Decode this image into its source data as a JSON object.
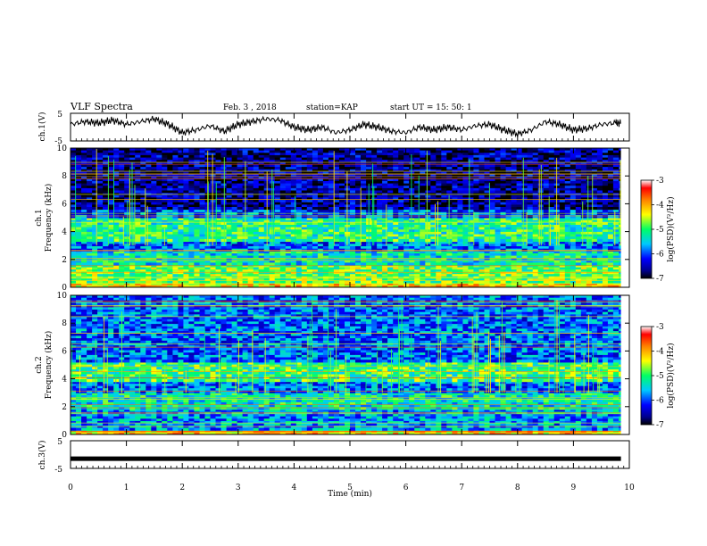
{
  "header": {
    "title": "VLF Spectra",
    "date": "Feb. 3 , 2018",
    "station": "station=KAP",
    "start": "start UT = 15: 50: 1"
  },
  "chart_data": [
    {
      "type": "line",
      "ylabel": "ch.1(V)",
      "ylim": [
        -5,
        5
      ],
      "yticks": [
        "5",
        "-5"
      ],
      "xlim": [
        0,
        10
      ],
      "series": [
        {
          "x": [
            0,
            0.25,
            0.5,
            0.75,
            1,
            1.25,
            1.5,
            1.75,
            2,
            2.25,
            2.5,
            2.75,
            3,
            3.25,
            3.5,
            3.75,
            4,
            4.25,
            4.5,
            4.75,
            5,
            5.25,
            5.5,
            5.75,
            6,
            6.25,
            6.5,
            6.75,
            7,
            7.25,
            7.5,
            7.75,
            8,
            8.25,
            8.5,
            8.75,
            9,
            9.25,
            9.5,
            9.75,
            9.85
          ],
          "values": [
            1,
            2,
            1.5,
            2.5,
            1,
            2,
            3,
            1,
            -2,
            -1,
            0.5,
            -1.5,
            1,
            2,
            3,
            2.5,
            0,
            -1,
            0,
            -2,
            -1,
            1,
            0,
            -1.5,
            -2,
            0,
            -1,
            0,
            -1,
            0.5,
            1,
            -1,
            -2.5,
            -1,
            2,
            1,
            -1,
            -0.5,
            1,
            1.5,
            1.5
          ]
        }
      ],
      "color": "#000000"
    },
    {
      "type": "heatmap",
      "panel": "ch.1",
      "ylabel": "Frequency (kHz)",
      "ylim": [
        0,
        10
      ],
      "yticks": [
        "0",
        "2",
        "4",
        "6",
        "8",
        "10"
      ],
      "xlim": [
        0,
        10
      ],
      "colorbar": {
        "label": "log(PSD)(V²/Hz)",
        "range": [
          -7,
          -3
        ],
        "ticks": [
          "-3",
          "-4",
          "-5",
          "-6",
          "-7"
        ]
      },
      "bands_khz": [
        {
          "from": 0,
          "to": 0.3,
          "level": -4.2
        },
        {
          "from": 0.3,
          "to": 1.6,
          "level": -4.8
        },
        {
          "from": 1.6,
          "to": 2.6,
          "level": -5.3
        },
        {
          "from": 2.6,
          "to": 3.3,
          "level": -5.9
        },
        {
          "from": 3.3,
          "to": 5.0,
          "level": -5.1
        },
        {
          "from": 5.0,
          "to": 5.6,
          "level": -6.0
        },
        {
          "from": 5.6,
          "to": 10,
          "level": -6.6
        }
      ]
    },
    {
      "type": "heatmap",
      "panel": "ch.2",
      "ylabel": "Frequency (kHz)",
      "ylim": [
        0,
        10
      ],
      "yticks": [
        "0",
        "2",
        "4",
        "6",
        "8",
        "10"
      ],
      "xlim": [
        0,
        10
      ],
      "colorbar": {
        "label": "log(PSD)(V²/Hz)",
        "range": [
          -7,
          -3
        ],
        "ticks": [
          "-3",
          "-4",
          "-5",
          "-6",
          "-7"
        ]
      },
      "bands_khz": [
        {
          "from": 0,
          "to": 0.3,
          "level": -4.2
        },
        {
          "from": 0.3,
          "to": 1.8,
          "level": -5.7
        },
        {
          "from": 1.8,
          "to": 3.0,
          "level": -5.3
        },
        {
          "from": 3.0,
          "to": 3.8,
          "level": -5.9
        },
        {
          "from": 3.8,
          "to": 5.2,
          "level": -5.0
        },
        {
          "from": 5.2,
          "to": 10,
          "level": -5.9
        }
      ]
    },
    {
      "type": "line",
      "ylabel": "ch.3(V)",
      "ylim": [
        -5,
        5
      ],
      "yticks": [
        "5",
        "0",
        "-5"
      ],
      "xlim": [
        0,
        10
      ],
      "xlabel": "Time (min)",
      "xticks": [
        "0",
        "1",
        "2",
        "3",
        "4",
        "5",
        "6",
        "7",
        "8",
        "9",
        "10"
      ],
      "series": [
        {
          "x": [
            0,
            9.85
          ],
          "values": [
            -1.5,
            -1.5
          ]
        }
      ],
      "color": "#000000"
    }
  ]
}
